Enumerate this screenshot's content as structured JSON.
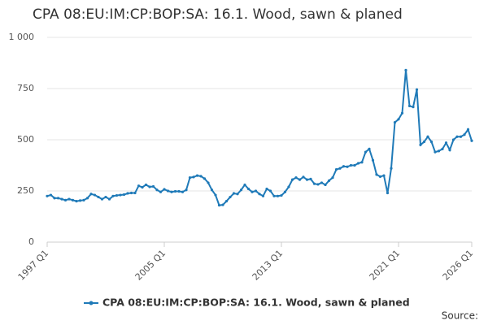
{
  "chart_data": {
    "type": "line",
    "title": "CPA 08:EU:IM:CP:BOP:SA: 16.1. Wood, sawn & planed",
    "source": "Source:",
    "categories": [
      "1997 Q1",
      null,
      null,
      null,
      null,
      null,
      null,
      null,
      null,
      null,
      null,
      null,
      null,
      null,
      null,
      null,
      null,
      null,
      null,
      null,
      null,
      null,
      null,
      null,
      null,
      null,
      null,
      null,
      null,
      null,
      null,
      null,
      "2005 Q1",
      null,
      null,
      null,
      null,
      null,
      null,
      null,
      null,
      null,
      null,
      null,
      null,
      null,
      null,
      null,
      null,
      null,
      null,
      null,
      null,
      null,
      null,
      null,
      null,
      null,
      null,
      null,
      null,
      null,
      null,
      null,
      "2013 Q1",
      null,
      null,
      null,
      null,
      null,
      null,
      null,
      null,
      null,
      null,
      null,
      null,
      null,
      null,
      null,
      null,
      null,
      null,
      null,
      null,
      null,
      null,
      null,
      null,
      null,
      null,
      null,
      null,
      null,
      null,
      null,
      "2021 Q1",
      null,
      null,
      null,
      null,
      null,
      null,
      null,
      null,
      null,
      null,
      null,
      null,
      null,
      null,
      null,
      null,
      null,
      null,
      null,
      "2026 Q1"
    ],
    "series": [
      {
        "name": "CPA 08:EU:IM:CP:BOP:SA: 16.1. Wood, sawn & planed",
        "color": "#1f7ab8",
        "values": [
          225,
          230,
          215,
          215,
          210,
          205,
          210,
          205,
          200,
          203,
          205,
          215,
          235,
          230,
          220,
          210,
          220,
          210,
          225,
          228,
          230,
          232,
          238,
          240,
          240,
          275,
          268,
          280,
          270,
          272,
          255,
          245,
          258,
          250,
          245,
          248,
          248,
          245,
          255,
          315,
          318,
          325,
          322,
          310,
          290,
          255,
          230,
          180,
          182,
          200,
          220,
          238,
          235,
          255,
          280,
          260,
          245,
          250,
          235,
          225,
          260,
          250,
          225,
          225,
          228,
          245,
          270,
          305,
          315,
          305,
          318,
          305,
          308,
          285,
          282,
          290,
          280,
          300,
          315,
          355,
          360,
          370,
          368,
          375,
          375,
          385,
          390,
          440,
          455,
          400,
          330,
          320,
          325,
          240,
          360,
          585,
          600,
          630,
          840,
          665,
          660,
          745,
          475,
          490,
          515,
          490,
          440,
          445,
          455,
          485,
          450,
          500,
          515,
          515,
          525,
          550,
          495
        ]
      }
    ],
    "ylim": [
      0,
      1000
    ],
    "yticks": [
      0,
      250,
      500,
      750,
      {
        "value": 1000,
        "label": "1 000"
      }
    ],
    "grid": true
  }
}
